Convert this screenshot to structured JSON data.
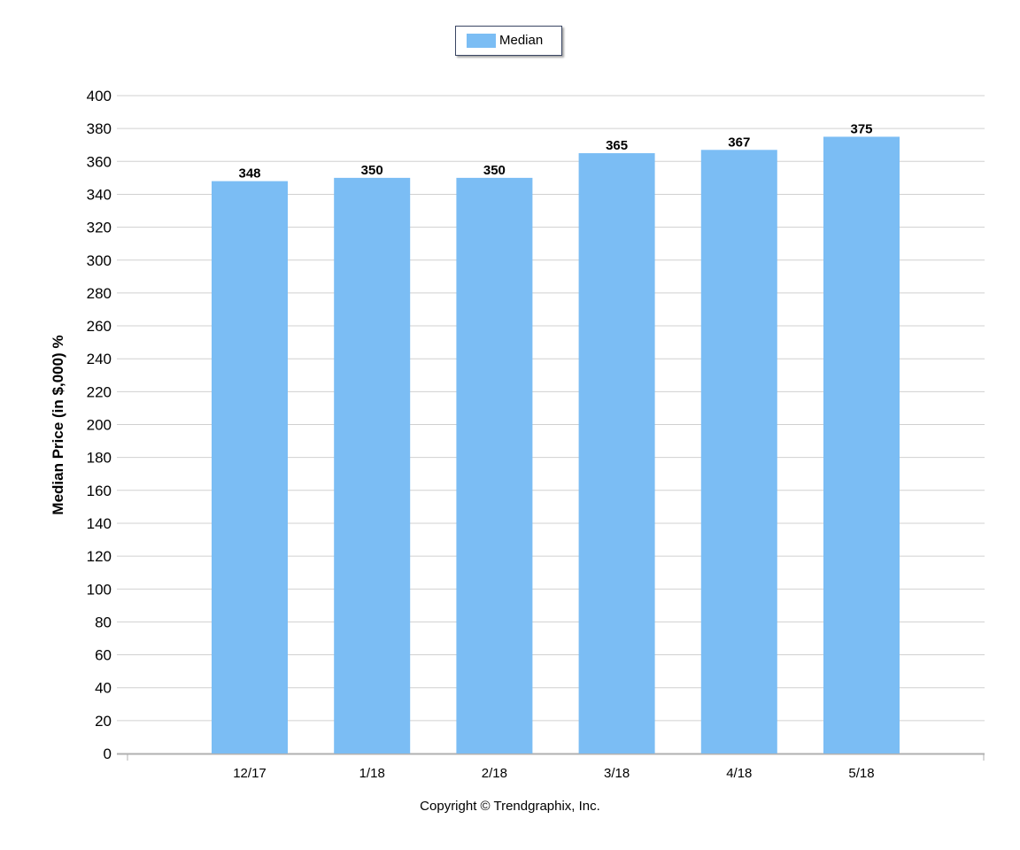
{
  "colors": {
    "bar": "#7bbdf4",
    "grid": "#d0d0d0",
    "axis": "#b0b0b0",
    "text": "#000000",
    "legend_border": "#3a4663"
  },
  "legend": {
    "label": "Median"
  },
  "copyright": "Copyright © Trendgraphix, Inc.",
  "chart_data": {
    "type": "bar",
    "categories": [
      "12/17",
      "1/18",
      "2/18",
      "3/18",
      "4/18",
      "5/18"
    ],
    "series": [
      {
        "name": "Median",
        "values": [
          348,
          350,
          350,
          365,
          367,
          375
        ]
      }
    ],
    "data_labels": [
      "348",
      "350",
      "350",
      "365",
      "367",
      "375"
    ],
    "ylabel": "Median Price (in $,000) %",
    "xlabel": "",
    "ylim": [
      0,
      400
    ],
    "yticks": [
      0,
      20,
      40,
      60,
      80,
      100,
      120,
      140,
      160,
      180,
      200,
      220,
      240,
      260,
      280,
      300,
      320,
      340,
      360,
      380,
      400
    ],
    "grid": true,
    "legend_position": "top-center"
  }
}
